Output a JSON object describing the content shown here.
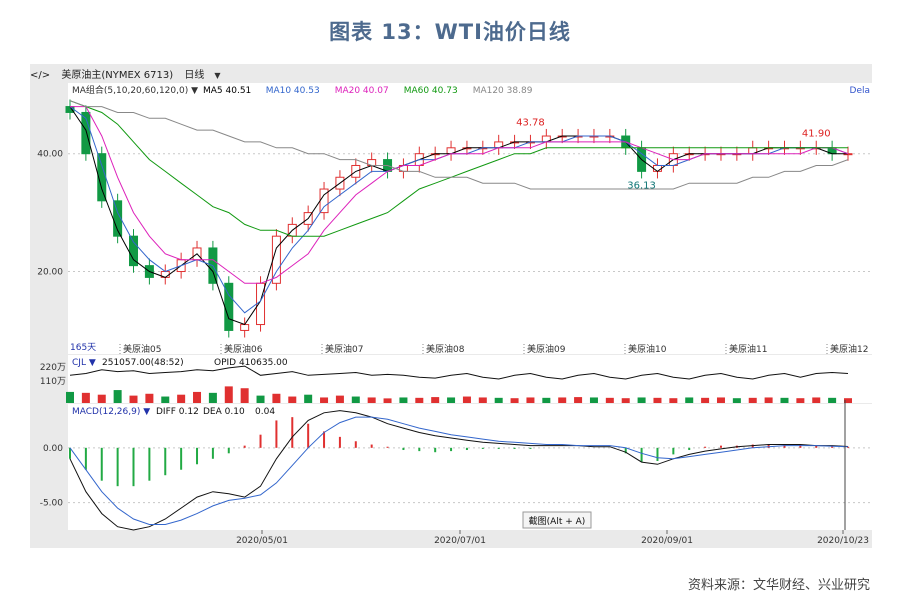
{
  "title": "图表 13：WTI油价日线",
  "source": "资料来源：文华财经、兴业研究",
  "toolbar": {
    "instrument": "美原油主(NYMEX 6713)",
    "period": "日线"
  },
  "chart_data": [
    {
      "type": "line",
      "panel": "price",
      "legend": {
        "ma_label": "MA组合(5,10,20,60,120,0)",
        "items": [
          {
            "name": "MA5",
            "value": "40.51",
            "color": "#000000"
          },
          {
            "name": "MA10",
            "value": "40.53",
            "color": "#3366cc"
          },
          {
            "name": "MA20",
            "value": "40.07",
            "color": "#dd22bb"
          },
          {
            "name": "MA60",
            "value": "40.73",
            "color": "#119911"
          },
          {
            "name": "MA120",
            "value": "38.89",
            "color": "#888888"
          }
        ],
        "corner": "Dela"
      },
      "y_ticks": [
        "40.00",
        "20.00"
      ],
      "y_tick_values": [
        40,
        20
      ],
      "ylim": [
        6,
        52
      ],
      "day_count_label": "165天",
      "contract_labels": [
        "美原油05",
        "美原油06",
        "美原油07",
        "美原油08",
        "美原油09",
        "美原油10",
        "美原油11",
        "美原油12"
      ],
      "annotations": [
        {
          "text": "43.78",
          "value": 43.78,
          "color": "#dd2222"
        },
        {
          "text": "36.13",
          "value": 36.13,
          "color": "#117777"
        },
        {
          "text": "41.90",
          "value": 41.9,
          "color": "#dd2222"
        }
      ],
      "series": [
        {
          "name": "MA5",
          "color": "#000000",
          "values": [
            48,
            44,
            34,
            27,
            22,
            20,
            19,
            21,
            23,
            20,
            12,
            11,
            15,
            24,
            27,
            29,
            33,
            35,
            37,
            38,
            37,
            38,
            39,
            40,
            40,
            41,
            41,
            41,
            42,
            42,
            42,
            43,
            43,
            43,
            43,
            42,
            39,
            37,
            39,
            40,
            40,
            40,
            40,
            40,
            41,
            41,
            41,
            41,
            40,
            40
          ]
        },
        {
          "name": "MA10",
          "color": "#3366cc",
          "values": [
            48,
            46,
            38,
            30,
            25,
            22,
            20,
            21,
            22,
            21,
            16,
            13,
            15,
            20,
            24,
            27,
            31,
            33,
            35,
            37,
            37,
            38,
            39,
            39,
            40,
            40,
            41,
            41,
            41,
            42,
            42,
            42,
            43,
            43,
            43,
            42,
            40,
            38,
            38,
            39,
            40,
            40,
            40,
            40,
            40,
            41,
            41,
            41,
            41,
            40
          ]
        },
        {
          "name": "MA20",
          "color": "#dd22bb",
          "values": [
            48,
            48,
            43,
            36,
            30,
            26,
            23,
            22,
            22,
            22,
            20,
            18,
            18,
            19,
            21,
            23,
            27,
            30,
            33,
            35,
            37,
            38,
            38,
            39,
            40,
            40,
            40,
            41,
            41,
            41,
            42,
            42,
            42,
            42,
            42,
            42,
            41,
            40,
            39,
            39,
            40,
            40,
            40,
            40,
            40,
            40,
            40,
            41,
            41,
            40
          ]
        },
        {
          "name": "MA60",
          "color": "#119911",
          "values": [
            49,
            48,
            47,
            45,
            42,
            39,
            37,
            35,
            33,
            31,
            30,
            28,
            27,
            27,
            26,
            26,
            26,
            27,
            28,
            29,
            30,
            32,
            34,
            35,
            36,
            37,
            38,
            39,
            40,
            40,
            41,
            41,
            41,
            41,
            41,
            41,
            41,
            41,
            41,
            41,
            41,
            41,
            41,
            41,
            41,
            41,
            41,
            41,
            41,
            41
          ]
        },
        {
          "name": "MA120",
          "color": "#888888",
          "values": [
            49,
            48,
            48,
            47,
            47,
            46,
            46,
            45,
            44,
            44,
            43,
            42,
            42,
            41,
            41,
            40,
            40,
            39,
            39,
            38,
            38,
            37,
            37,
            36,
            36,
            36,
            35,
            35,
            35,
            34,
            34,
            34,
            34,
            34,
            34,
            34,
            34,
            34,
            34,
            35,
            35,
            35,
            35,
            36,
            36,
            37,
            37,
            38,
            38,
            39
          ]
        }
      ],
      "candles_close": [
        47,
        40,
        32,
        26,
        21,
        19,
        20,
        22,
        24,
        18,
        10,
        11,
        18,
        26,
        28,
        30,
        34,
        36,
        38,
        39,
        37,
        38,
        40,
        40,
        41,
        41,
        41,
        42,
        42,
        42,
        43,
        43,
        43,
        43,
        43,
        41,
        37,
        38,
        40,
        40,
        40,
        40,
        40,
        41,
        41,
        41,
        41,
        41,
        40,
        40
      ]
    },
    {
      "type": "bar",
      "panel": "volume",
      "label": "CJL",
      "volume_text": "251057.00(48:52)",
      "opid_text": "OPID 410635.00",
      "y_ticks": [
        "220万",
        "110万"
      ],
      "ylim": [
        0,
        260
      ],
      "values": [
        60,
        55,
        45,
        70,
        40,
        50,
        35,
        45,
        60,
        55,
        90,
        80,
        40,
        50,
        35,
        45,
        30,
        40,
        35,
        30,
        25,
        30,
        28,
        32,
        30,
        35,
        30,
        28,
        26,
        30,
        28,
        30,
        32,
        30,
        28,
        26,
        30,
        28,
        26,
        30,
        28,
        30,
        26,
        28,
        30,
        28,
        26,
        30,
        28,
        26
      ],
      "oi_line": [
        150,
        160,
        180,
        170,
        175,
        160,
        165,
        170,
        180,
        175,
        190,
        200,
        150,
        160,
        170,
        150,
        155,
        160,
        165,
        150,
        155,
        150,
        140,
        135,
        150,
        160,
        140,
        130,
        150,
        160,
        140,
        130,
        150,
        160,
        140,
        130,
        150,
        160,
        140,
        130,
        150,
        160,
        140,
        130,
        150,
        160,
        140,
        160,
        165,
        160
      ]
    },
    {
      "type": "bar",
      "panel": "macd",
      "label": "MACD(12,26,9)",
      "diff_text": "DIFF 0.12",
      "dea_text": "DEA 0.10",
      "macd_text": "0.04",
      "y_ticks": [
        "0.00",
        "-5.00"
      ],
      "y_tick_values": [
        0,
        -5
      ],
      "ylim": [
        -7.5,
        4
      ],
      "histogram": [
        -1,
        -2,
        -3,
        -3.5,
        -3.5,
        -3,
        -2.5,
        -2,
        -1.5,
        -1,
        -0.5,
        0.2,
        1.2,
        2.5,
        2.8,
        2.2,
        1.5,
        1,
        0.6,
        0.3,
        0.1,
        -0.2,
        -0.3,
        -0.4,
        -0.3,
        -0.2,
        -0.1,
        -0.1,
        -0.1,
        -0.1,
        0,
        0,
        0,
        0,
        0,
        -0.5,
        -1.3,
        -1.2,
        -0.6,
        -0.2,
        0.1,
        0.2,
        0.2,
        0.3,
        0.3,
        0.3,
        0.3,
        0.2,
        0.2,
        0.1
      ],
      "diff": [
        -1,
        -4,
        -6,
        -7.2,
        -7.5,
        -7.2,
        -6.5,
        -5.5,
        -4.5,
        -4,
        -4.2,
        -4.5,
        -3.5,
        -1,
        1,
        2.5,
        3.2,
        3.4,
        3.2,
        2.8,
        2.2,
        1.8,
        1.4,
        1.1,
        0.9,
        0.7,
        0.5,
        0.4,
        0.3,
        0.2,
        0.2,
        0.2,
        0.2,
        0.1,
        0.1,
        -0.4,
        -1.3,
        -1.5,
        -1,
        -0.6,
        -0.3,
        -0.1,
        0.1,
        0.2,
        0.3,
        0.3,
        0.3,
        0.2,
        0.2,
        0.12
      ],
      "dea": [
        0,
        -2,
        -4,
        -5.5,
        -6.5,
        -7,
        -7,
        -6.6,
        -6,
        -5.3,
        -4.8,
        -4.6,
        -4.3,
        -3.2,
        -1.6,
        0,
        1.4,
        2.3,
        2.8,
        2.8,
        2.6,
        2.2,
        1.8,
        1.5,
        1.2,
        1,
        0.8,
        0.6,
        0.5,
        0.4,
        0.3,
        0.3,
        0.2,
        0.2,
        0.2,
        0,
        -0.5,
        -0.9,
        -1,
        -0.8,
        -0.6,
        -0.4,
        -0.2,
        0,
        0.1,
        0.2,
        0.2,
        0.2,
        0.15,
        0.1
      ]
    }
  ],
  "x_axis_dates": [
    "2020/05/01",
    "2020/07/01",
    "2020/09/01",
    "2020/10/23"
  ],
  "tooltip": "截图(Alt + A)"
}
